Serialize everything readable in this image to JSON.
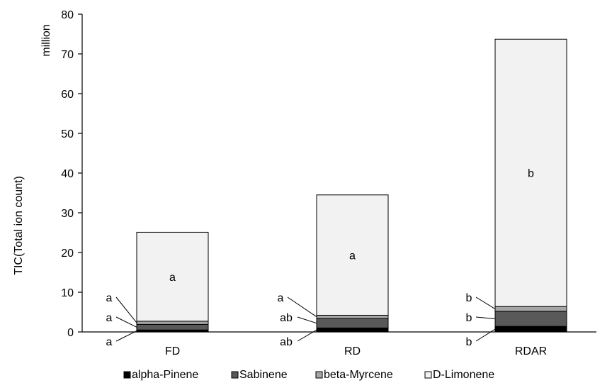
{
  "chart_data": {
    "type": "bar",
    "stacked": true,
    "categories": [
      "FD",
      "RD",
      "RDAR"
    ],
    "series": [
      {
        "name": "alpha-Pinene",
        "color": "#000000",
        "values": [
          0.5,
          1.0,
          1.4
        ]
      },
      {
        "name": "Sabinene",
        "color": "#595959",
        "values": [
          1.4,
          2.4,
          3.8
        ]
      },
      {
        "name": "beta-Myrcene",
        "color": "#a6a6a6",
        "values": [
          0.8,
          0.8,
          1.2
        ]
      },
      {
        "name": "D-Limonene",
        "color": "#f2f2f2",
        "values": [
          22.4,
          30.3,
          67.3
        ]
      }
    ],
    "ylabel": "TIC(Total ion count)",
    "unit_label": "million",
    "ylim": [
      0,
      80
    ],
    "yticks": [
      0,
      10,
      20,
      30,
      40,
      50,
      60,
      70,
      80
    ],
    "legend_position": "bottom",
    "grid": false,
    "significance_labels": {
      "alpha-Pinene": [
        "a",
        "ab",
        "b"
      ],
      "Sabinene": [
        "a",
        "ab",
        "b"
      ],
      "beta-Myrcene": [
        "a",
        "a",
        "b"
      ],
      "D-Limonene": [
        "a",
        "a",
        "b"
      ]
    }
  }
}
